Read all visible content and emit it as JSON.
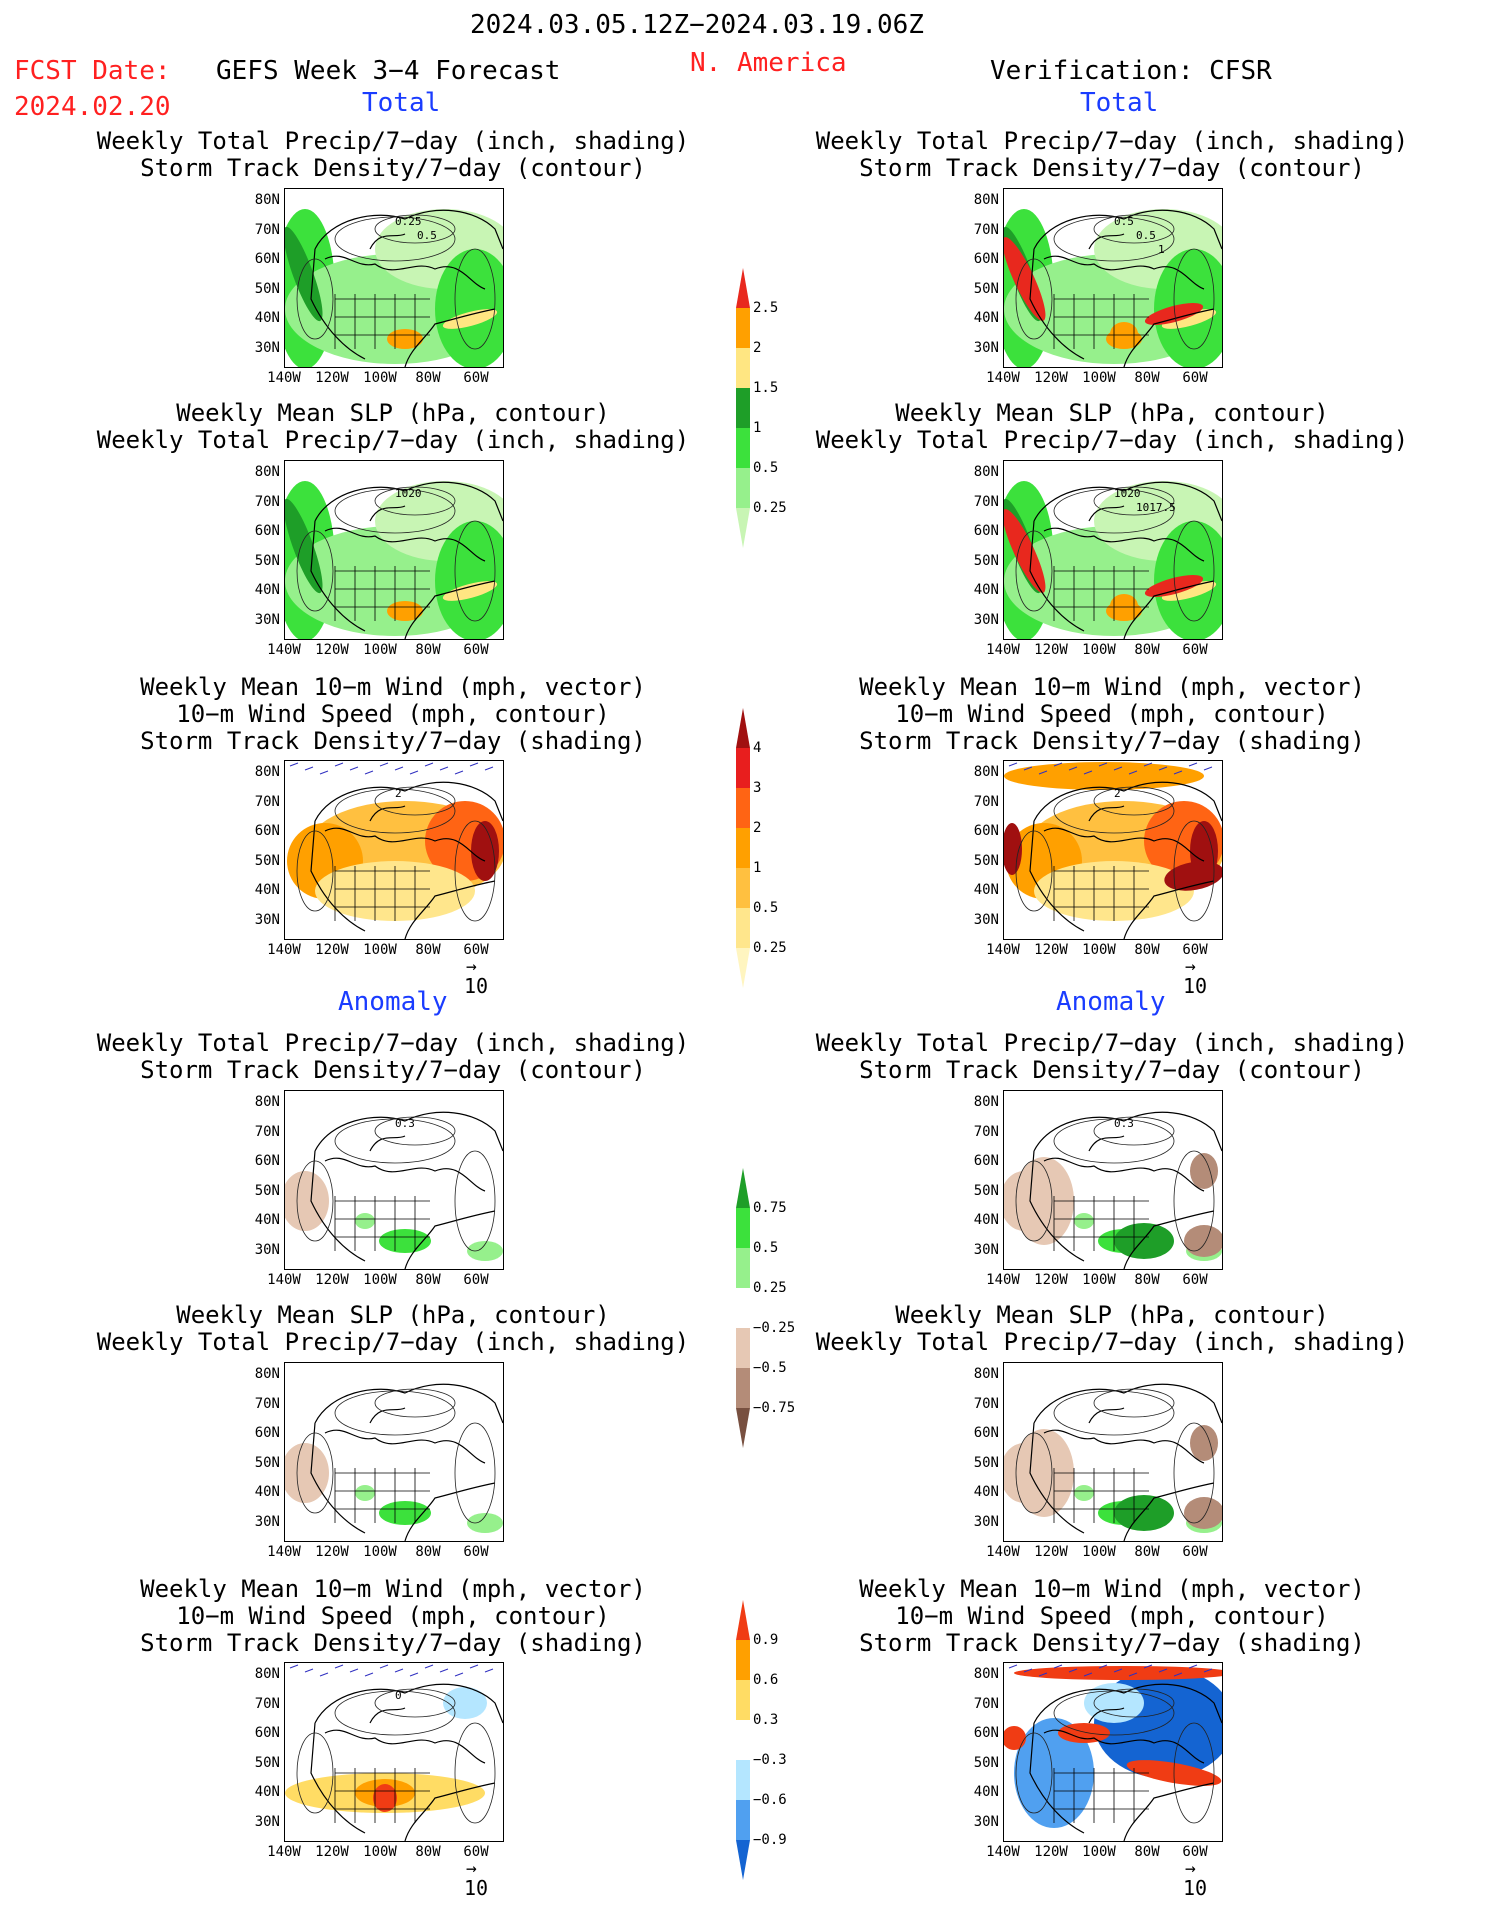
{
  "header": {
    "date_range": "2024.03.05.12Z−2024.03.19.06Z",
    "fcst_label": "FCST Date:",
    "fcst_date": "2024.02.20",
    "model": "GEFS Week 3−4 Forecast",
    "region": "N. America",
    "verification": "Verification: CFSR"
  },
  "sections": {
    "total": "Total",
    "anomaly": "Anomaly"
  },
  "titles": {
    "precip": [
      "Weekly Total Precip/7−day (inch, shading)",
      "Storm Track Density/7−day (contour)"
    ],
    "slp": [
      "Weekly Mean SLP (hPa, contour)",
      "Weekly Total Precip/7−day (inch, shading)"
    ],
    "wind": [
      "Weekly Mean 10−m Wind (mph, vector)",
      "10−m Wind Speed (mph, contour)",
      "Storm Track Density/7−day (shading)"
    ]
  },
  "axes": {
    "lat": [
      "80N",
      "70N",
      "60N",
      "50N",
      "40N",
      "30N"
    ],
    "lon": [
      "140W",
      "120W",
      "100W",
      "80W",
      "60W"
    ]
  },
  "vector_ref": "10",
  "map_labels": {
    "t_precip_l": [
      "0.25",
      "0.5"
    ],
    "t_precip_r": [
      "0.5",
      "0.5",
      "1"
    ],
    "t_slp_l": [
      "1020"
    ],
    "t_slp_r": [
      "1020",
      "1017.5"
    ],
    "t_wind_l": [
      "2"
    ],
    "t_wind_r": [
      "2"
    ],
    "a_precip_l": [
      "0.3"
    ],
    "a_precip_r": [
      "0.3"
    ],
    "a_wind_l": [
      "0"
    ]
  },
  "colorbars": {
    "precip_total": {
      "labels": [
        "2.5",
        "2",
        "1.5",
        "1",
        "0.5",
        "0.25"
      ],
      "colors": [
        "#e8281e",
        "#ffa000",
        "#ffe682",
        "#1e9e28",
        "#3ce13c",
        "#96f08c",
        "#c8f5b4"
      ]
    },
    "storm_total": {
      "labels": [
        "4",
        "3",
        "2",
        "1",
        "0.5",
        "0.25"
      ],
      "colors": [
        "#a01010",
        "#e81e1e",
        "#ff6414",
        "#ffa000",
        "#ffc040",
        "#ffe68c",
        "#fff5c0"
      ]
    },
    "precip_anom": {
      "labels": [
        "0.75",
        "0.5",
        "0.25",
        "−0.25",
        "−0.5",
        "−0.75"
      ],
      "colors": [
        "#1e9e28",
        "#3ce13c",
        "#96f08c",
        "#ffffff",
        "#e6c8b4",
        "#b48c78",
        "#785040"
      ]
    },
    "storm_anom": {
      "labels": [
        "0.9",
        "0.6",
        "0.3",
        "−0.3",
        "−0.6",
        "−0.9"
      ],
      "colors": [
        "#f03c14",
        "#ffa000",
        "#ffdc64",
        "#ffffff",
        "#b4e6ff",
        "#50a0f0",
        "#1464d2"
      ]
    }
  },
  "colors": {
    "header_red": "#ff2020",
    "section_blue": "#1a3cff"
  }
}
